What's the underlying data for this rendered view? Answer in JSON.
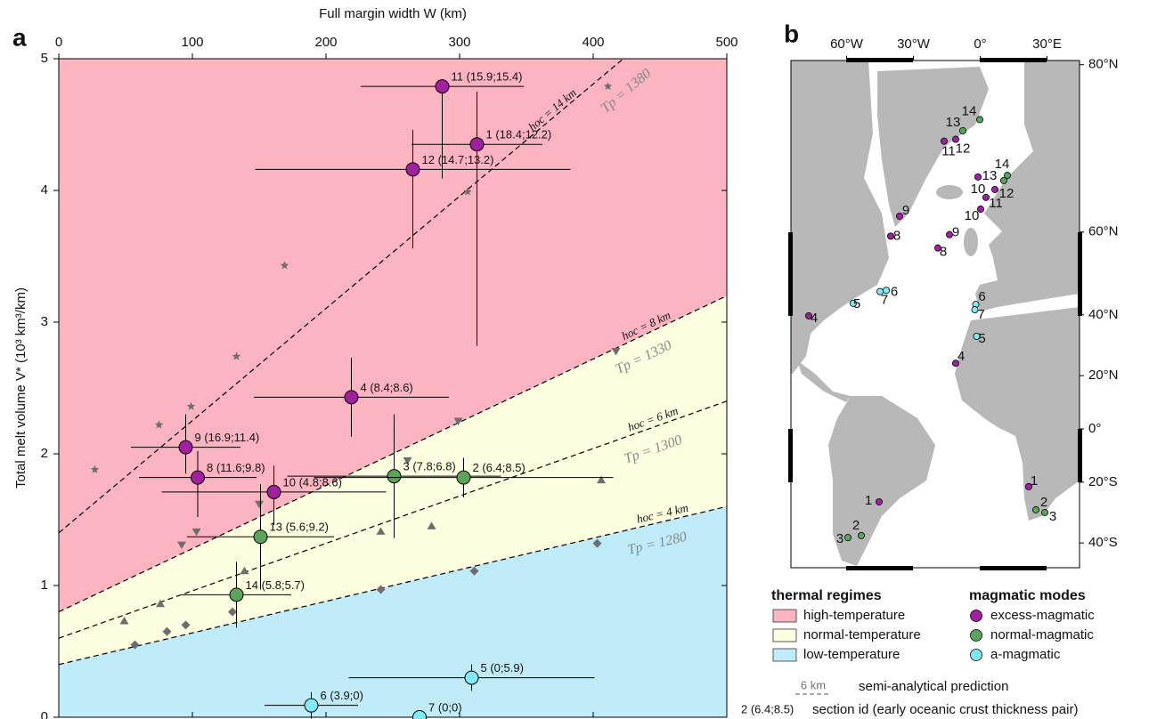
{
  "chart_data": {
    "type": "scatter",
    "label": "a",
    "xlabel": "Full margin width W (km)",
    "ylabel": "Total melt volume V* (10³ km³/km)",
    "xlim": [
      0,
      500
    ],
    "ylim": [
      0,
      5
    ],
    "xticks": [
      0,
      100,
      200,
      300,
      400,
      500
    ],
    "yticks": [
      0,
      1,
      2,
      3,
      4,
      5
    ],
    "regimes": [
      {
        "name": "high-temperature",
        "color": "#fcb4c0"
      },
      {
        "name": "normal-temperature",
        "color": "#fefee0"
      },
      {
        "name": "low-temperature",
        "color": "#c0ecfa"
      }
    ],
    "reference_lines": [
      {
        "label": "hoc = 14 km",
        "tp_label": "Tp = 1380",
        "x": [
          0,
          500
        ],
        "values": [
          1.4,
          5.66
        ]
      },
      {
        "label": "hoc = 8 km",
        "tp_label": "Tp = 1330",
        "x": [
          0,
          500
        ],
        "values": [
          0.8,
          3.2
        ]
      },
      {
        "label": "hoc = 6 km",
        "tp_label": "Tp = 1300",
        "x": [
          0,
          500
        ],
        "values": [
          0.6,
          2.4
        ]
      },
      {
        "label": "hoc = 4 km",
        "tp_label": "Tp = 1280",
        "x": [
          0,
          500
        ],
        "values": [
          0.4,
          1.6
        ]
      }
    ],
    "reference_points": [
      {
        "marker": "star",
        "x": [
          27,
          75,
          99,
          133,
          169,
          306,
          411
        ],
        "values": [
          1.88,
          2.22,
          2.36,
          2.74,
          3.43,
          3.99,
          4.79
        ]
      },
      {
        "marker": "triangle-down",
        "x": [
          92,
          103,
          150,
          261,
          299,
          417
        ],
        "values": [
          1.31,
          1.41,
          1.62,
          1.95,
          2.25,
          2.78
        ]
      },
      {
        "marker": "triangle-up",
        "x": [
          49,
          76,
          139,
          241,
          279,
          406
        ],
        "values": [
          0.73,
          0.86,
          1.11,
          1.41,
          1.45,
          1.8
        ]
      },
      {
        "marker": "diamond",
        "x": [
          57,
          81,
          95,
          130,
          241,
          311,
          403
        ],
        "values": [
          0.55,
          0.65,
          0.7,
          0.8,
          0.97,
          1.11,
          1.32
        ]
      }
    ],
    "series": [
      {
        "name": "excess-magmatic",
        "color": "#a020a0",
        "labels": [
          "11 (15.9;15.4)",
          "1 (18.4;12.2)",
          "12 (14.7;13.2)",
          "4 (8.4;8.6)",
          "9 (16.9;11.4)",
          "8 (11.6;9.8)",
          "10 (4.8;8.6)"
        ],
        "x": [
          287,
          313,
          265,
          219,
          95,
          104,
          161
        ],
        "values": [
          4.79,
          4.35,
          4.16,
          2.43,
          2.05,
          1.82,
          1.71
        ],
        "xerr": [
          61,
          49,
          118,
          73,
          41,
          44,
          84
        ],
        "yerr_minus": [
          0.7,
          1.53,
          0.6,
          0.3,
          0.2,
          0.3,
          0.25
        ],
        "yerr_plus": [
          0,
          0.4,
          0.3,
          0.3,
          0.25,
          0.2,
          0.2
        ]
      },
      {
        "name": "normal-magmatic",
        "color": "#5aa55a",
        "labels": [
          "3 (7.8;6.8)",
          "2 (6.4;8.5)",
          "13 (5.6;9.2)",
          "14 (5.8;5.7)"
        ],
        "x": [
          251,
          303,
          151,
          133
        ],
        "values": [
          1.83,
          1.82,
          1.37,
          0.93
        ],
        "xerr": [
          80,
          112,
          55,
          41
        ],
        "yerr_minus": [
          0.47,
          0.15,
          0.4,
          0.25
        ],
        "yerr_plus": [
          0.47,
          0.15,
          0.4,
          0.25
        ]
      },
      {
        "name": "a-magmatic",
        "color": "#80eaf8",
        "labels": [
          "5 (0;5.9)",
          "6 (3.9;0)",
          "7 (0;0)"
        ],
        "x": [
          309,
          189,
          270
        ],
        "values": [
          0.3,
          0.09,
          0
        ],
        "xerr": [
          92,
          35,
          0
        ],
        "yerr_minus": [
          0.1,
          0.1,
          0
        ],
        "yerr_plus": [
          0.1,
          0.1,
          0
        ]
      }
    ]
  },
  "map": {
    "label": "b",
    "lon_ticks": [
      {
        "value": -60,
        "label": "60°W"
      },
      {
        "value": -30,
        "label": "30°W"
      },
      {
        "value": 0,
        "label": "0°"
      },
      {
        "value": 30,
        "label": "30°E"
      }
    ],
    "lat_ticks": [
      {
        "value": 80,
        "label": "80°N"
      },
      {
        "value": 60,
        "label": "60°N"
      },
      {
        "value": 40,
        "label": "40°N"
      },
      {
        "value": 20,
        "label": "20°N"
      },
      {
        "value": 0,
        "label": "0°"
      },
      {
        "value": -20,
        "label": "20°S"
      },
      {
        "value": -40,
        "label": "40°S"
      }
    ],
    "sites": [
      {
        "label": "14",
        "lon": -0.2,
        "lat": 75.6,
        "color": "#5aa55a"
      },
      {
        "label": "13",
        "lon": -7.8,
        "lat": 74.5,
        "color": "#5aa55a"
      },
      {
        "label": "12",
        "lon": -11,
        "lat": 73.6,
        "color": "#a020a0"
      },
      {
        "label": "11",
        "lon": -16.2,
        "lat": 73.4,
        "color": "#a020a0"
      },
      {
        "label": "10",
        "lon": -1,
        "lat": 69,
        "color": "#a020a0"
      },
      {
        "label": "14",
        "lon": 12.2,
        "lat": 69.2,
        "color": "#5aa55a"
      },
      {
        "label": "13",
        "lon": 10.6,
        "lat": 68.5,
        "color": "#5aa55a"
      },
      {
        "label": "12",
        "lon": 6.6,
        "lat": 67.2,
        "color": "#a020a0"
      },
      {
        "label": "11",
        "lon": 2.6,
        "lat": 66,
        "color": "#a020a0"
      },
      {
        "label": "10",
        "lon": 0.2,
        "lat": 64.1,
        "color": "#a020a0"
      },
      {
        "label": "9",
        "lon": -36.2,
        "lat": 62.9,
        "color": "#a020a0"
      },
      {
        "label": "8",
        "lon": -40.2,
        "lat": 59.2,
        "color": "#a020a0"
      },
      {
        "label": "9",
        "lon": -13.8,
        "lat": 59.5,
        "color": "#a020a0"
      },
      {
        "label": "8",
        "lon": -19,
        "lat": 56.8,
        "color": "#a020a0"
      },
      {
        "label": "6",
        "lon": -42.2,
        "lat": 46.8,
        "color": "#80eaf8"
      },
      {
        "label": "7",
        "lon": -45,
        "lat": 46.5,
        "color": "#80eaf8"
      },
      {
        "label": "5",
        "lon": -57,
        "lat": 43.3,
        "color": "#80eaf8"
      },
      {
        "label": "4",
        "lon": -77,
        "lat": 39.7,
        "color": "#a020a0"
      },
      {
        "label": "6",
        "lon": -2,
        "lat": 43,
        "color": "#80eaf8"
      },
      {
        "label": "7",
        "lon": -2.4,
        "lat": 41.5,
        "color": "#80eaf8"
      },
      {
        "label": "5",
        "lon": -1.6,
        "lat": 33.4,
        "color": "#80eaf8"
      },
      {
        "label": "4",
        "lon": -11,
        "lat": 24.4,
        "color": "#a020a0"
      },
      {
        "label": "1",
        "lon": 21.8,
        "lat": -21.6,
        "color": "#a020a0"
      },
      {
        "label": "2",
        "lon": 25,
        "lat": -29.6,
        "color": "#5aa55a"
      },
      {
        "label": "3",
        "lon": 29,
        "lat": -30.5,
        "color": "#5aa55a"
      },
      {
        "label": "1",
        "lon": -45.4,
        "lat": -26.9,
        "color": "#a020a0"
      },
      {
        "label": "2",
        "lon": -53.4,
        "lat": -37.8,
        "color": "#5aa55a"
      },
      {
        "label": "3",
        "lon": -59.4,
        "lat": -38.4,
        "color": "#5aa55a"
      }
    ],
    "legend": {
      "thermal_title": "thermal regimes",
      "magmatic_title": "magmatic modes",
      "prediction_sample": "6 km",
      "prediction_label": "semi-analytical prediction",
      "id_sample": "2 (6.4;8.5)",
      "id_label": "section id (early oceanic crust thickness pair)"
    }
  }
}
